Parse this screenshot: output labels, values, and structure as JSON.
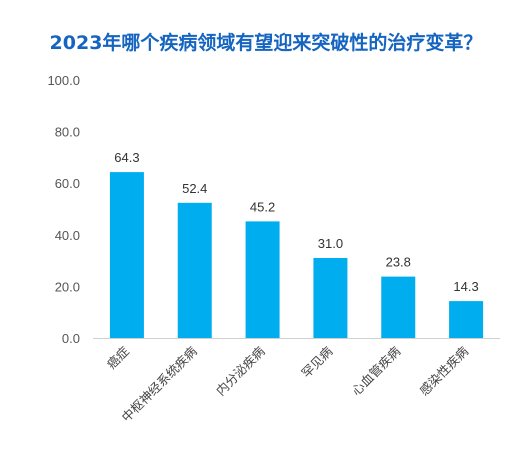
{
  "chart_data": {
    "type": "bar",
    "title": "2023年哪个疾病领域有望迎来突破性的治疗变革？",
    "xlabel": "",
    "ylabel": "",
    "categories": [
      "癌症",
      "中枢神经系统疾病",
      "内分泌疾病",
      "罕见病",
      "心血管疾病",
      "感染性疾病"
    ],
    "values": [
      64.3,
      52.4,
      45.2,
      31.0,
      23.8,
      14.3
    ],
    "value_labels": [
      "64.3",
      "52.4",
      "45.2",
      "31.0",
      "23.8",
      "14.3"
    ],
    "ylim": [
      0,
      100
    ],
    "yticks": [
      "0.0",
      "20.0",
      "40.0",
      "60.0",
      "80.0",
      "100.0"
    ],
    "grid": false,
    "legend": "none",
    "bar_color": "#00aeef"
  }
}
